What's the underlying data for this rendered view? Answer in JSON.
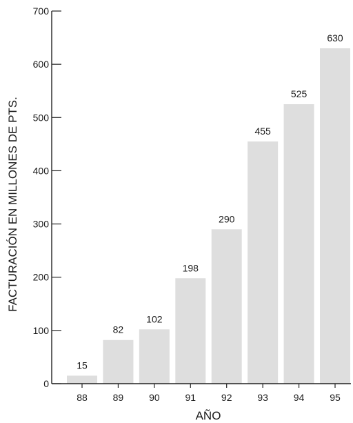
{
  "chart_data": {
    "type": "bar",
    "categories": [
      "88",
      "89",
      "90",
      "91",
      "92",
      "93",
      "94",
      "95"
    ],
    "values": [
      15,
      82,
      102,
      198,
      290,
      455,
      525,
      630
    ],
    "data_labels": [
      "15",
      "82",
      "102",
      "198",
      "290",
      "455",
      "525",
      "630"
    ],
    "title": "",
    "xlabel": "AÑO",
    "ylabel": "FACTURACIÓN EN MILLONES DE PTS.",
    "ylim": [
      0,
      700
    ],
    "yticks": [
      0,
      100,
      200,
      300,
      400,
      500,
      600,
      700
    ],
    "ytick_labels": [
      "0",
      "100",
      "200",
      "300",
      "400",
      "500",
      "600",
      "700"
    ],
    "grid": false,
    "colors": {
      "bar": "#dedede",
      "axis": "#222222",
      "text": "#1a1a1a"
    }
  }
}
